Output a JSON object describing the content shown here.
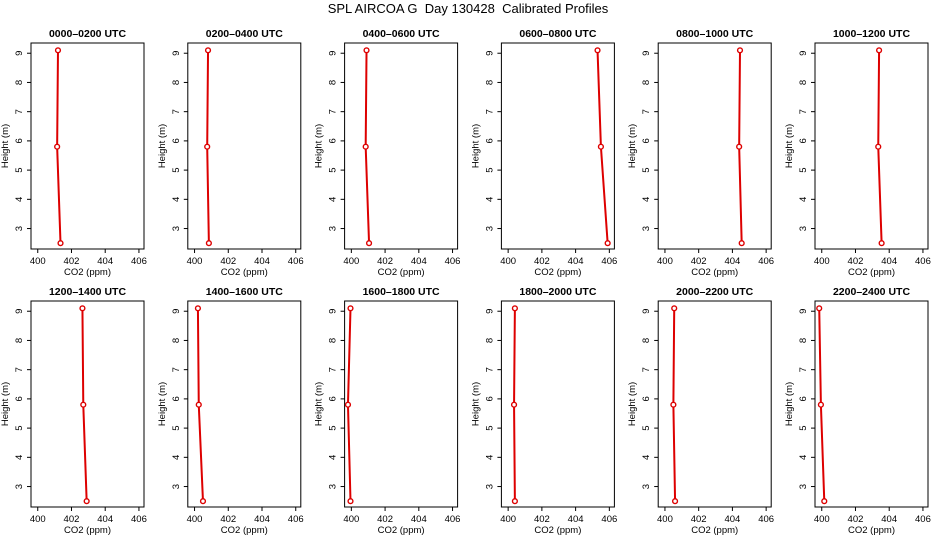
{
  "page": {
    "title": "SPL AIRCOA G  Day 130428  Calibrated Profiles"
  },
  "chart_data": {
    "type": "line",
    "xlabel": "CO2 (ppm)",
    "ylabel": "Height (m)",
    "xlim": [
      399.6,
      406.3
    ],
    "ylim": [
      2.3,
      9.35
    ],
    "xticks": [
      400,
      402,
      404,
      406
    ],
    "yticks": [
      3,
      4,
      5,
      6,
      7,
      8,
      9
    ],
    "heights": [
      9.1,
      5.8,
      2.5
    ],
    "series_color": "#dd0000",
    "panels": [
      {
        "title": "0000–0200 UTC",
        "values": [
          401.2,
          401.15,
          401.35
        ]
      },
      {
        "title": "0200–0400 UTC",
        "values": [
          400.8,
          400.75,
          400.85
        ]
      },
      {
        "title": "0400–0600 UTC",
        "values": [
          400.9,
          400.85,
          401.05
        ]
      },
      {
        "title": "0600–0800 UTC",
        "values": [
          405.3,
          405.5,
          405.9
        ]
      },
      {
        "title": "0800–1000 UTC",
        "values": [
          404.45,
          404.4,
          404.55
        ]
      },
      {
        "title": "1000–1200 UTC",
        "values": [
          403.4,
          403.35,
          403.55
        ]
      },
      {
        "title": "1200–1400 UTC",
        "values": [
          402.65,
          402.7,
          402.9
        ]
      },
      {
        "title": "1400–1600 UTC",
        "values": [
          400.2,
          400.25,
          400.5
        ]
      },
      {
        "title": "1600–1800 UTC",
        "values": [
          399.95,
          399.8,
          399.95
        ]
      },
      {
        "title": "1800–2000 UTC",
        "values": [
          400.4,
          400.35,
          400.4
        ]
      },
      {
        "title": "2000–2200 UTC",
        "values": [
          400.55,
          400.5,
          400.6
        ]
      },
      {
        "title": "2200–2400 UTC",
        "values": [
          399.85,
          399.95,
          400.15
        ]
      }
    ]
  }
}
